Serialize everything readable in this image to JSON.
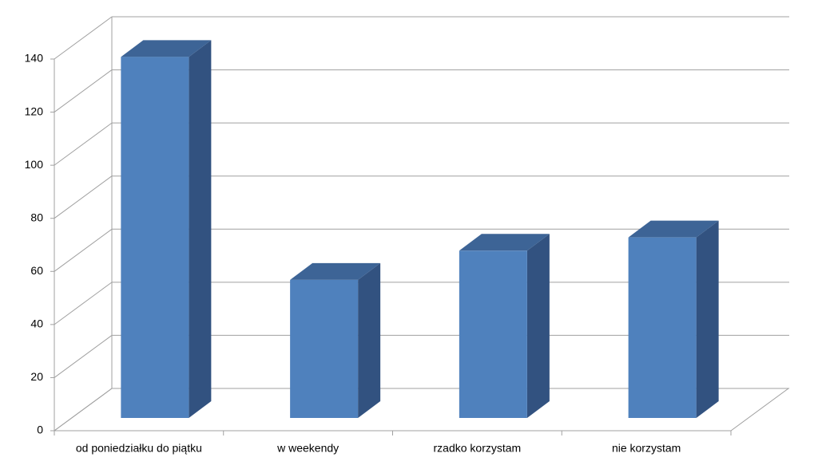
{
  "chart_data": {
    "type": "bar3d",
    "categories": [
      "od poniedziałku do piątku",
      "w weekendy",
      "rzadko korzystam",
      "nie korzystam"
    ],
    "values": [
      136,
      52,
      63,
      68
    ],
    "color": "#4f81bd",
    "ylim": [
      0,
      140
    ],
    "yticks": [
      0,
      20,
      40,
      60,
      80,
      100,
      120,
      140
    ],
    "grid": true
  }
}
